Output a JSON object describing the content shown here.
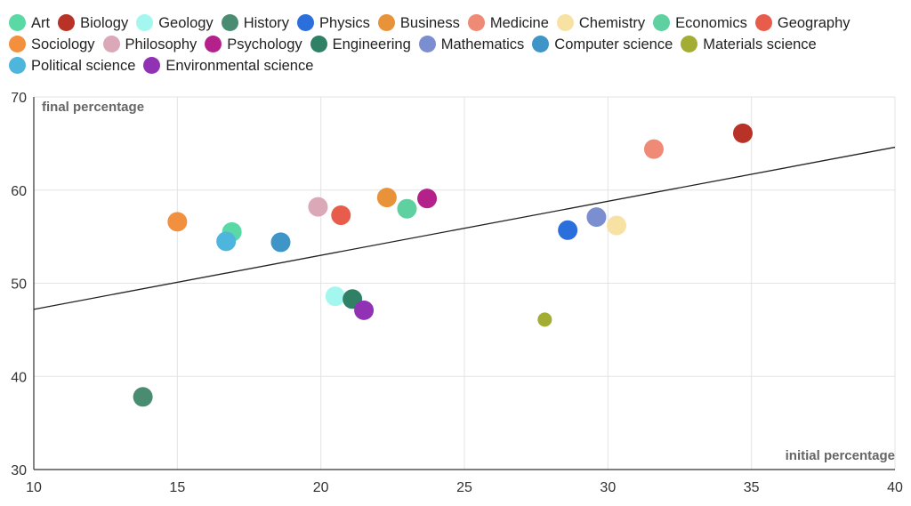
{
  "chart_data": {
    "type": "scatter",
    "title": "",
    "xlabel": "initial percentage",
    "ylabel": "final percentage",
    "xlim": [
      10,
      40
    ],
    "ylim": [
      30,
      70
    ],
    "x_ticks": [
      "10",
      "15",
      "20",
      "25",
      "30",
      "35",
      "40"
    ],
    "y_ticks": [
      "30",
      "40",
      "50",
      "60",
      "70"
    ],
    "grid": true,
    "legend_position": "top",
    "trendline": {
      "x": [
        10,
        40
      ],
      "y": [
        47.2,
        64.6
      ]
    },
    "series": [
      {
        "name": "Art",
        "color": "#5ad8a6",
        "x": 16.9,
        "y": 55.5
      },
      {
        "name": "Biology",
        "color": "#b83227",
        "x": 34.7,
        "y": 66.1
      },
      {
        "name": "Geology",
        "color": "#a3f7ef",
        "x": 20.5,
        "y": 48.6
      },
      {
        "name": "History",
        "color": "#4a8c72",
        "x": 13.8,
        "y": 37.8
      },
      {
        "name": "Physics",
        "color": "#2b6fdc",
        "x": 28.6,
        "y": 55.7
      },
      {
        "name": "Business",
        "color": "#e8923a",
        "x": 22.3,
        "y": 59.2
      },
      {
        "name": "Medicine",
        "color": "#ef8a76",
        "x": 31.6,
        "y": 64.4
      },
      {
        "name": "Chemistry",
        "color": "#f8e2a3",
        "x": 30.3,
        "y": 56.2
      },
      {
        "name": "Economics",
        "color": "#5fd0a0",
        "x": 23.0,
        "y": 58.0
      },
      {
        "name": "Geography",
        "color": "#e85c4c",
        "x": 20.7,
        "y": 57.3
      },
      {
        "name": "Sociology",
        "color": "#f2903e",
        "x": 15.0,
        "y": 56.6
      },
      {
        "name": "Philosophy",
        "color": "#dba8b8",
        "x": 19.9,
        "y": 58.2
      },
      {
        "name": "Psychology",
        "color": "#b5218a",
        "x": 23.7,
        "y": 59.1
      },
      {
        "name": "Engineering",
        "color": "#2f8064",
        "x": 21.1,
        "y": 48.3
      },
      {
        "name": "Mathematics",
        "color": "#7b8fd0",
        "x": 29.6,
        "y": 57.1
      },
      {
        "name": "Computer science",
        "color": "#3f95c8",
        "x": 18.6,
        "y": 54.4
      },
      {
        "name": "Materials science",
        "color": "#a3ad33",
        "x": 27.8,
        "y": 46.1
      },
      {
        "name": "Political science",
        "color": "#4eb6dc",
        "x": 16.7,
        "y": 54.5
      },
      {
        "name": "Environmental science",
        "color": "#9132b5",
        "x": 21.5,
        "y": 47.1
      }
    ]
  }
}
